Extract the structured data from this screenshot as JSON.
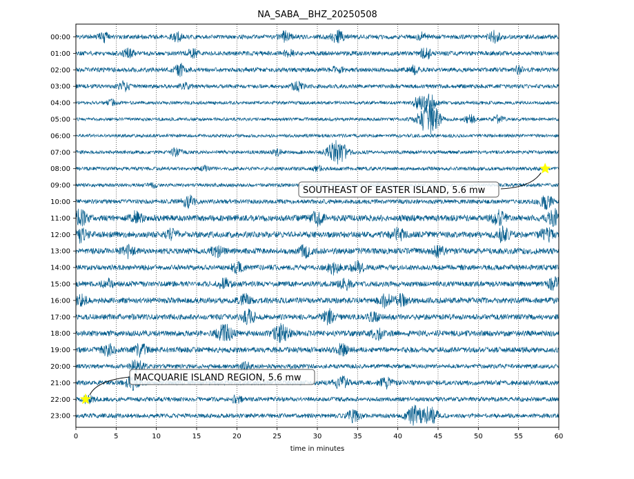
{
  "chart_data": {
    "type": "line",
    "title": "NA_SABA__BHZ_20250508",
    "xlabel": "time in minutes",
    "ylabel": "",
    "xlim": [
      0,
      60
    ],
    "x_ticks": [
      0,
      5,
      10,
      15,
      20,
      25,
      30,
      35,
      40,
      45,
      50,
      55,
      60
    ],
    "x_tick_labels": [
      "0",
      "5",
      "10",
      "15",
      "20",
      "25",
      "30",
      "35",
      "40",
      "45",
      "50",
      "55",
      "60"
    ],
    "y_tick_labels": [
      "00:00",
      "01:00",
      "02:00",
      "03:00",
      "04:00",
      "05:00",
      "06:00",
      "07:00",
      "08:00",
      "09:00",
      "10:00",
      "11:00",
      "12:00",
      "13:00",
      "14:00",
      "15:00",
      "16:00",
      "17:00",
      "18:00",
      "19:00",
      "20:00",
      "21:00",
      "22:00",
      "23:00"
    ],
    "vertical_grid": true,
    "trace_color": "#045c8c",
    "series": [
      {
        "hour": "00:00",
        "noise": 0.5,
        "bursts": [
          {
            "t": 3.5,
            "amp": 0.9
          },
          {
            "t": 12.5,
            "amp": 0.8
          },
          {
            "t": 26,
            "amp": 1.0
          },
          {
            "t": 32.5,
            "amp": 1.2
          },
          {
            "t": 43,
            "amp": 0.7
          },
          {
            "t": 52,
            "amp": 1.0
          }
        ]
      },
      {
        "hour": "01:00",
        "noise": 0.5,
        "bursts": [
          {
            "t": 6.5,
            "amp": 0.8
          },
          {
            "t": 14.5,
            "amp": 0.8
          },
          {
            "t": 26.5,
            "amp": 0.7
          },
          {
            "t": 43.5,
            "amp": 1.0
          }
        ]
      },
      {
        "hour": "02:00",
        "noise": 0.5,
        "bursts": [
          {
            "t": 13,
            "amp": 1.1
          },
          {
            "t": 32.5,
            "amp": 0.9
          },
          {
            "t": 42,
            "amp": 0.8
          },
          {
            "t": 55,
            "amp": 0.6
          }
        ]
      },
      {
        "hour": "03:00",
        "noise": 0.4,
        "bursts": [
          {
            "t": 6,
            "amp": 0.9
          },
          {
            "t": 13.5,
            "amp": 0.9
          },
          {
            "t": 27.5,
            "amp": 0.9
          }
        ]
      },
      {
        "hour": "04:00",
        "noise": 0.25,
        "bursts": [
          {
            "t": 4.5,
            "amp": 0.6
          },
          {
            "t": 42.5,
            "amp": 1.0
          },
          {
            "t": 44,
            "amp": 1.6
          }
        ]
      },
      {
        "hour": "05:00",
        "noise": 0.25,
        "bursts": [
          {
            "t": 43.5,
            "amp": 2.2
          },
          {
            "t": 44.5,
            "amp": 1.6
          },
          {
            "t": 49,
            "amp": 0.8
          },
          {
            "t": 52.5,
            "amp": 0.7
          }
        ]
      },
      {
        "hour": "06:00",
        "noise": 0.25,
        "bursts": []
      },
      {
        "hour": "07:00",
        "noise": 0.3,
        "bursts": [
          {
            "t": 12.5,
            "amp": 0.8
          },
          {
            "t": 25,
            "amp": 0.6
          },
          {
            "t": 32.5,
            "amp": 2.3
          }
        ]
      },
      {
        "hour": "08:00",
        "noise": 0.3,
        "bursts": [
          {
            "t": 16,
            "amp": 0.4
          },
          {
            "t": 30,
            "amp": 0.5
          }
        ]
      },
      {
        "hour": "09:00",
        "noise": 0.3,
        "bursts": [
          {
            "t": 9.5,
            "amp": 0.5
          },
          {
            "t": 37.5,
            "amp": 0.6
          }
        ]
      },
      {
        "hour": "10:00",
        "noise": 0.5,
        "bursts": [
          {
            "t": 14,
            "amp": 1.1
          },
          {
            "t": 58.5,
            "amp": 1.3
          }
        ]
      },
      {
        "hour": "11:00",
        "noise": 0.9,
        "bursts": [
          {
            "t": 0.5,
            "amp": 1.4
          },
          {
            "t": 7.5,
            "amp": 1.1
          },
          {
            "t": 30,
            "amp": 1.2
          },
          {
            "t": 52.5,
            "amp": 1.3
          },
          {
            "t": 59.5,
            "amp": 1.5
          }
        ]
      },
      {
        "hour": "12:00",
        "noise": 0.9,
        "bursts": [
          {
            "t": 0.5,
            "amp": 1.3
          },
          {
            "t": 12,
            "amp": 1.0
          },
          {
            "t": 40,
            "amp": 1.2
          },
          {
            "t": 53,
            "amp": 1.3
          },
          {
            "t": 58.5,
            "amp": 1.2
          }
        ]
      },
      {
        "hour": "13:00",
        "noise": 0.85,
        "bursts": [
          {
            "t": 6.5,
            "amp": 1.1
          },
          {
            "t": 17.5,
            "amp": 1.0
          },
          {
            "t": 28.5,
            "amp": 1.0
          },
          {
            "t": 45,
            "amp": 1.0
          }
        ]
      },
      {
        "hour": "14:00",
        "noise": 0.7,
        "bursts": [
          {
            "t": 20,
            "amp": 1.0
          },
          {
            "t": 32,
            "amp": 1.2
          },
          {
            "t": 35,
            "amp": 1.1
          }
        ]
      },
      {
        "hour": "15:00",
        "noise": 0.7,
        "bursts": [
          {
            "t": 4,
            "amp": 0.9
          },
          {
            "t": 18.5,
            "amp": 1.0
          },
          {
            "t": 33.5,
            "amp": 1.0
          },
          {
            "t": 59.5,
            "amp": 1.2
          }
        ]
      },
      {
        "hour": "16:00",
        "noise": 0.8,
        "bursts": [
          {
            "t": 0.5,
            "amp": 1.1
          },
          {
            "t": 21,
            "amp": 1.1
          },
          {
            "t": 38.5,
            "amp": 1.2
          },
          {
            "t": 40.5,
            "amp": 1.0
          }
        ]
      },
      {
        "hour": "17:00",
        "noise": 0.75,
        "bursts": [
          {
            "t": 21.5,
            "amp": 1.2
          },
          {
            "t": 31.5,
            "amp": 1.3
          },
          {
            "t": 37,
            "amp": 0.9
          }
        ]
      },
      {
        "hour": "18:00",
        "noise": 0.8,
        "bursts": [
          {
            "t": 18.5,
            "amp": 1.6
          },
          {
            "t": 25.5,
            "amp": 1.6
          },
          {
            "t": 37.5,
            "amp": 1.0
          }
        ]
      },
      {
        "hour": "19:00",
        "noise": 0.75,
        "bursts": [
          {
            "t": 4,
            "amp": 1.0
          },
          {
            "t": 8,
            "amp": 1.1
          },
          {
            "t": 33,
            "amp": 1.0
          }
        ]
      },
      {
        "hour": "20:00",
        "noise": 0.5,
        "bursts": [
          {
            "t": 7.5,
            "amp": 1.3
          },
          {
            "t": 21,
            "amp": 0.8
          }
        ]
      },
      {
        "hour": "21:00",
        "noise": 0.6,
        "bursts": [
          {
            "t": 7,
            "amp": 1.2
          },
          {
            "t": 33,
            "amp": 1.2
          },
          {
            "t": 38.5,
            "amp": 1.0
          }
        ]
      },
      {
        "hour": "22:00",
        "noise": 0.5,
        "bursts": [
          {
            "t": 1.5,
            "amp": 0.8
          },
          {
            "t": 20,
            "amp": 0.7
          }
        ]
      },
      {
        "hour": "23:00",
        "noise": 0.5,
        "bursts": [
          {
            "t": 34.5,
            "amp": 1.1
          },
          {
            "t": 42,
            "amp": 1.8
          },
          {
            "t": 44,
            "amp": 1.6
          }
        ]
      }
    ],
    "events": [
      {
        "label": "SOUTHEAST OF EASTER ISLAND, 5.6 mw",
        "row": "08:00",
        "minute": 58.3,
        "marker_color": "#ffff00"
      },
      {
        "label": "MACQUARIE ISLAND REGION, 5.6 mw",
        "row": "22:00",
        "minute": 1.2,
        "marker_color": "#ffff00"
      }
    ]
  }
}
